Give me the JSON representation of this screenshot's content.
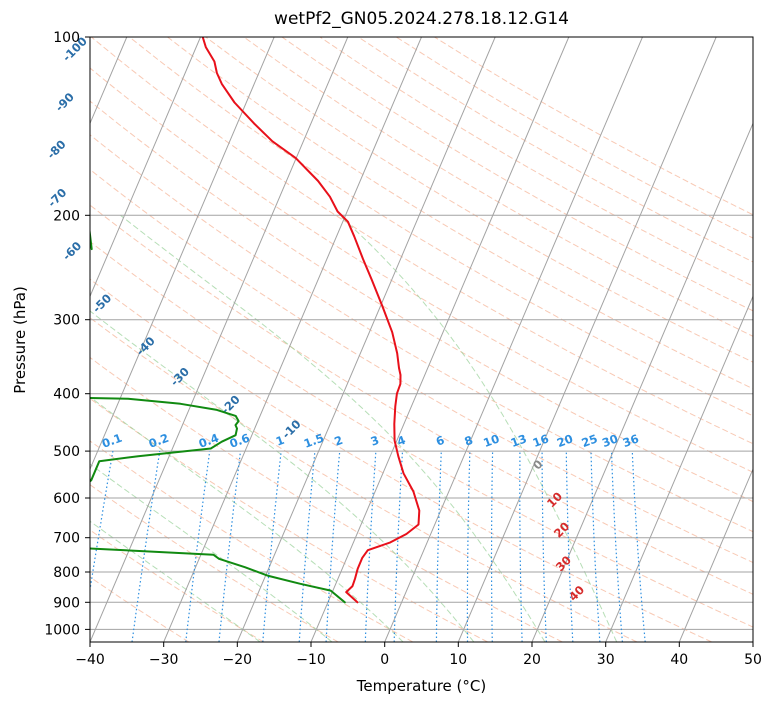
{
  "chart_data": {
    "type": "line",
    "title": "wetPf2_GN05.2024.278.18.12.G14",
    "xlabel": "Temperature (°C)",
    "ylabel": "Pressure (hPa)",
    "xlim": [
      -40,
      50
    ],
    "ylim": [
      1050,
      100
    ],
    "y_scale": "log",
    "skew": 35,
    "x_ticks": [
      -40,
      -30,
      -20,
      -10,
      0,
      10,
      20,
      30,
      40,
      50
    ],
    "y_ticks": [
      100,
      200,
      300,
      400,
      500,
      600,
      700,
      800,
      900,
      1000
    ],
    "grid": true,
    "colors": {
      "temperature": "#e8101a",
      "dewpoint": "#118a11",
      "isotherm": "#a3a3a3",
      "dry_adiabat": "#f4a582",
      "moist_adiabat": "#8fcc8f",
      "mixing_ratio": "#2d8fe0",
      "theta_label": "#2b6ea8",
      "theta_e_label": "#d62b2b",
      "zero_label": "#8a8a8a"
    },
    "series": [
      {
        "key": "temperature",
        "points": [
          [
            -6,
            900
          ],
          [
            -8.1,
            865
          ],
          [
            -7.6,
            845
          ],
          [
            -7.7,
            820
          ],
          [
            -7.9,
            790
          ],
          [
            -7.9,
            757
          ],
          [
            -7.6,
            735
          ],
          [
            -5,
            713
          ],
          [
            -3.3,
            690
          ],
          [
            -2.2,
            665
          ],
          [
            -2.9,
            630
          ],
          [
            -4.8,
            585
          ],
          [
            -7.2,
            545
          ],
          [
            -8.9,
            510
          ],
          [
            -10.3,
            480
          ],
          [
            -11.3,
            450
          ],
          [
            -12.2,
            420
          ],
          [
            -12.7,
            400
          ],
          [
            -12.8,
            385
          ],
          [
            -13.3,
            372
          ],
          [
            -13.9,
            362
          ],
          [
            -15,
            342
          ],
          [
            -16.9,
            315
          ],
          [
            -19.7,
            285
          ],
          [
            -22.7,
            257
          ],
          [
            -25.1,
            237
          ],
          [
            -27.6,
            217
          ],
          [
            -29.3,
            205
          ],
          [
            -31.3,
            197
          ],
          [
            -33.2,
            186
          ],
          [
            -35.7,
            175
          ],
          [
            -40.1,
            160
          ],
          [
            -44.2,
            150
          ],
          [
            -47.7,
            140
          ],
          [
            -51.6,
            129
          ],
          [
            -54.4,
            120
          ],
          [
            -55.7,
            115
          ],
          [
            -56.7,
            110
          ],
          [
            -58.7,
            104
          ],
          [
            -59.7,
            100
          ]
        ]
      },
      {
        "key": "dewpoint",
        "points": [
          [
            -7.7,
            900
          ],
          [
            -10.3,
            860
          ],
          [
            -14.9,
            837
          ],
          [
            -19.6,
            812
          ],
          [
            -23.3,
            785
          ],
          [
            -27.3,
            760
          ],
          [
            -28.3,
            748
          ],
          [
            -50.5,
            725
          ],
          [
            -52.1,
            705
          ],
          [
            -52.2,
            660
          ],
          [
            -51.6,
            605
          ],
          [
            -49.2,
            560
          ],
          [
            -49.2,
            520
          ],
          [
            -44.2,
            510
          ],
          [
            -34.8,
            495
          ],
          [
            -33.7,
            482
          ],
          [
            -32.2,
            470
          ],
          [
            -32.4,
            458
          ],
          [
            -32.8,
            452
          ],
          [
            -32.6,
            445
          ],
          [
            -33.3,
            436
          ],
          [
            -36.2,
            426
          ],
          [
            -41.5,
            416
          ],
          [
            -48.9,
            408
          ],
          [
            -66.6,
            404
          ]
        ]
      },
      {
        "key": "dewpoint_upper",
        "points": [
          [
            -62.5,
            228
          ],
          [
            -65,
            200
          ],
          [
            -68,
            170
          ],
          [
            -72,
            140
          ],
          [
            -77,
            115
          ],
          [
            -81,
            100
          ]
        ]
      }
    ],
    "isotherms": [
      -130,
      -120,
      -110,
      -100,
      -90,
      -80,
      -70,
      -60,
      -50,
      -40,
      -30,
      -20,
      -10,
      0,
      10,
      20,
      30,
      40,
      50
    ],
    "dry_adiabats_C": [
      -30,
      -20,
      -10,
      0,
      10,
      20,
      30,
      40,
      50,
      60,
      70,
      80,
      90,
      100,
      110,
      120,
      130,
      140,
      150,
      160,
      170,
      180,
      190,
      200
    ],
    "moist_adiabats_C": [
      -20,
      -10,
      0,
      10,
      20,
      30
    ],
    "mixing_ratio_lines": [
      0.1,
      0.2,
      0.4,
      0.6,
      1,
      1.5,
      2,
      3,
      4,
      6,
      8,
      10,
      13,
      16,
      20,
      25,
      30,
      36
    ],
    "mixing_ratio_labels": [
      "0.1",
      "0.2",
      "0.4",
      "0.6",
      "1",
      "1.5",
      "2",
      "3",
      "4",
      "6",
      "8",
      "10",
      "13",
      "16",
      "20",
      "25",
      "30",
      "36"
    ],
    "theta_labels": [
      {
        "text": "-100",
        "t": -76.3,
        "p": 105
      },
      {
        "text": "-90",
        "t": -74.6,
        "p": 129
      },
      {
        "text": "-80",
        "t": -73,
        "p": 155
      },
      {
        "text": "-70",
        "t": -70.1,
        "p": 187
      },
      {
        "text": "-60",
        "t": -65,
        "p": 230
      },
      {
        "text": "-50",
        "t": -57.9,
        "p": 282
      },
      {
        "text": "-40",
        "t": -49.5,
        "p": 333
      },
      {
        "text": "-30",
        "t": -43.1,
        "p": 375
      },
      {
        "text": "-20",
        "t": -34.6,
        "p": 418
      },
      {
        "text": "-10",
        "t": -24.9,
        "p": 460
      }
    ],
    "theta_e_labels": [
      {
        "text": "0",
        "t": 10.6,
        "p": 528,
        "style": "zero"
      },
      {
        "text": "10",
        "t": 14.9,
        "p": 605,
        "style": "warm"
      },
      {
        "text": "20",
        "t": 17.6,
        "p": 680,
        "style": "warm"
      },
      {
        "text": "30",
        "t": 19.8,
        "p": 775,
        "style": "warm"
      },
      {
        "text": "40",
        "t": 23.3,
        "p": 870,
        "style": "warm"
      }
    ]
  }
}
